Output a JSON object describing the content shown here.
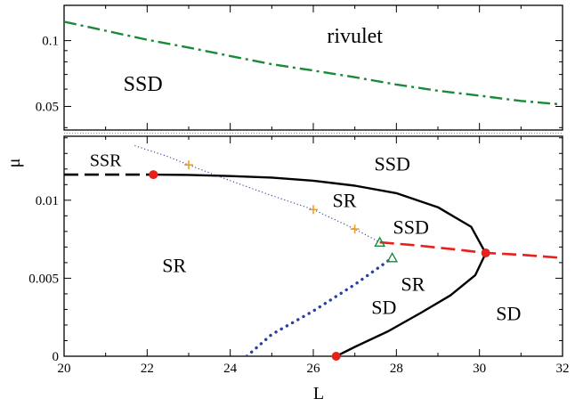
{
  "chart_data": {
    "type": "line",
    "xlabel": "L",
    "ylabel": "μ",
    "xlim": [
      20,
      32
    ],
    "x_ticks": [
      "20",
      "22",
      "24",
      "26",
      "28",
      "30",
      "32"
    ],
    "panels": [
      {
        "id": "top",
        "scale": "log",
        "ylim": [
          0.039,
          0.145
        ],
        "y_ticks": [
          {
            "value": 0.1,
            "label": "0.1"
          },
          {
            "value": 0.05,
            "label": "0.05"
          }
        ],
        "series": [
          {
            "style": "dash-dot",
            "color": "#1a8a3a",
            "points": [
              [
                20,
                0.122
              ],
              [
                21,
                0.111
              ],
              [
                22,
                0.101
              ],
              [
                23,
                0.093
              ],
              [
                24,
                0.085
              ],
              [
                25,
                0.078
              ],
              [
                26,
                0.073
              ],
              [
                27,
                0.068
              ],
              [
                28,
                0.063
              ],
              [
                29,
                0.059
              ],
              [
                30,
                0.056
              ],
              [
                31,
                0.053
              ],
              [
                32,
                0.051
              ]
            ]
          }
        ],
        "region_labels": [
          {
            "text": "rivulet",
            "x": 27.0,
            "y": 0.098,
            "size": 24
          },
          {
            "text": "SSD",
            "x": 21.9,
            "y": 0.059,
            "size": 24
          }
        ]
      },
      {
        "id": "bottom",
        "scale": "linear",
        "ylim": [
          0,
          0.0141
        ],
        "y_ticks": [
          {
            "value": 0,
            "label": "0"
          },
          {
            "value": 0.005,
            "label": "0.005"
          },
          {
            "value": 0.01,
            "label": "0.01"
          }
        ],
        "series": [
          {
            "style": "dashed",
            "color": "#000000",
            "points": [
              [
                20,
                0.01164
              ],
              [
                22.15,
                0.01164
              ]
            ]
          },
          {
            "style": "solid",
            "color": "#000000",
            "points": [
              [
                22.15,
                0.01164
              ],
              [
                23,
                0.01162
              ],
              [
                24,
                0.01155
              ],
              [
                25,
                0.01145
              ],
              [
                26,
                0.01125
              ],
              [
                27,
                0.01093
              ],
              [
                28,
                0.01045
              ],
              [
                29,
                0.00955
              ],
              [
                29.8,
                0.0083
              ],
              [
                30.15,
                0.0066
              ],
              [
                29.9,
                0.0052
              ],
              [
                29.3,
                0.0039
              ],
              [
                28.6,
                0.0028
              ],
              [
                27.8,
                0.0016
              ],
              [
                27.0,
                0.0006
              ],
              [
                26.55,
                0.0
              ]
            ]
          },
          {
            "style": "dotted-fine",
            "color": "#2a3fa0",
            "points": [
              [
                21.7,
                0.0135
              ],
              [
                22.5,
                0.0128
              ],
              [
                23,
                0.01226
              ],
              [
                24,
                0.01125
              ],
              [
                25,
                0.0103
              ],
              [
                26,
                0.0094
              ],
              [
                27,
                0.00815
              ],
              [
                27.6,
                0.0073
              ]
            ]
          },
          {
            "style": "dotted-heavy",
            "color": "#2a3fa0",
            "points": [
              [
                24.4,
                0.0
              ],
              [
                25,
                0.0014
              ],
              [
                26,
                0.0029
              ],
              [
                27,
                0.0046
              ],
              [
                27.9,
                0.0063
              ]
            ]
          },
          {
            "style": "dashed",
            "color": "#e8201c",
            "points": [
              [
                27.6,
                0.0073
              ],
              [
                28.5,
                0.0071
              ],
              [
                29.5,
                0.00682
              ],
              [
                30.15,
                0.00662
              ],
              [
                31,
                0.0065
              ],
              [
                32,
                0.0063
              ]
            ]
          }
        ],
        "markers": [
          {
            "shape": "circle",
            "color": "#e8201c",
            "x": 22.15,
            "y": 0.01164
          },
          {
            "shape": "circle",
            "color": "#e8201c",
            "x": 30.15,
            "y": 0.00662
          },
          {
            "shape": "circle",
            "color": "#e8201c",
            "x": 26.55,
            "y": 0.0
          },
          {
            "shape": "plus",
            "color": "#f0a020",
            "x": 23.0,
            "y": 0.01226
          },
          {
            "shape": "plus",
            "color": "#f0a020",
            "x": 26.0,
            "y": 0.0094
          },
          {
            "shape": "plus",
            "color": "#f0a020",
            "x": 27.0,
            "y": 0.00815
          },
          {
            "shape": "triangle",
            "color": "#1a8a3a",
            "x": 27.6,
            "y": 0.0073
          },
          {
            "shape": "triangle",
            "color": "#1a8a3a",
            "x": 27.9,
            "y": 0.0063
          }
        ],
        "region_labels": [
          {
            "text": "SSR",
            "x": 21.0,
            "y": 0.0122,
            "size": 20
          },
          {
            "text": "SSD",
            "x": 27.9,
            "y": 0.0119,
            "size": 22
          },
          {
            "text": "SR",
            "x": 26.75,
            "y": 0.00955,
            "size": 22
          },
          {
            "text": "SSD",
            "x": 28.35,
            "y": 0.00785,
            "size": 22
          },
          {
            "text": "SR",
            "x": 22.65,
            "y": 0.0054,
            "size": 22
          },
          {
            "text": "SR",
            "x": 28.4,
            "y": 0.0042,
            "size": 22
          },
          {
            "text": "SD",
            "x": 27.7,
            "y": 0.0027,
            "size": 22
          },
          {
            "text": "SD",
            "x": 30.7,
            "y": 0.0023,
            "size": 22
          }
        ]
      }
    ]
  }
}
